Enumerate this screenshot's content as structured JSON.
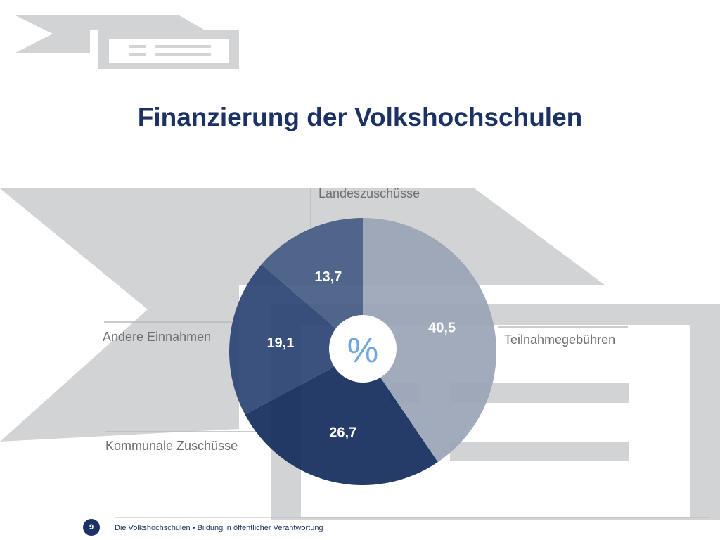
{
  "slide": {
    "title": "Finanzierung der Volkshochschulen",
    "page_number": "9",
    "footer_text": "Die Volkshochschulen • Bildung in öffentlicher Verantwortung"
  },
  "colors": {
    "title": "#1c3164",
    "decor_gray": "#d1d3d4",
    "badge": "#1c3164",
    "percent_sign": "#6ea8dc",
    "label_gray": "#6f6f6f"
  },
  "chart_data": {
    "type": "pie",
    "center_label": "%",
    "slices": [
      {
        "label": "Teilnahmegebühren",
        "value": 40.5,
        "value_label": "40,5",
        "color": "#9aa5b7"
      },
      {
        "label": "Kommunale Zuschüsse",
        "value": 26.7,
        "value_label": "26,7",
        "color": "#142d5c"
      },
      {
        "label": "Andere Einnahmen",
        "value": 19.1,
        "value_label": "19,1",
        "color": "#2c4474"
      },
      {
        "label": "Landeszuschüsse",
        "value": 13.7,
        "value_label": "13,7",
        "color": "#465c84"
      }
    ]
  }
}
